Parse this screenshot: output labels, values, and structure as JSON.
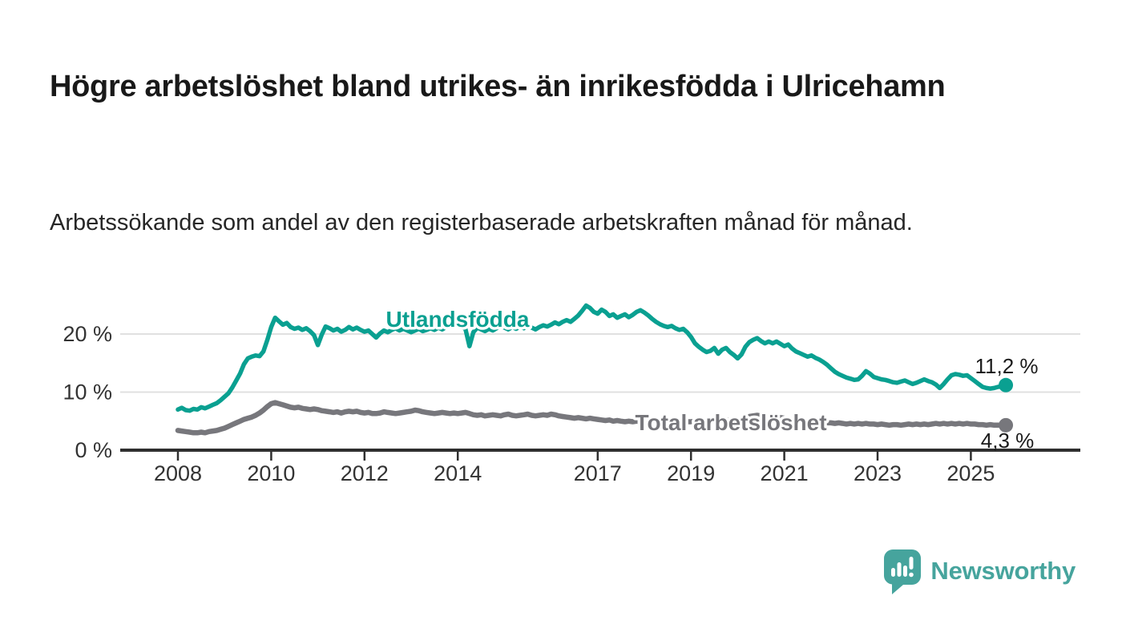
{
  "header": {
    "title": "Högre arbetslöshet bland utrikes- än inrikesfödda i Ulricehamn",
    "subtitle": "Arbetssökande som andel av den registerbaserade arbetskraften månad för månad."
  },
  "chart_data": {
    "type": "line",
    "title": "Högre arbetslöshet bland utrikes- än inrikesfödda i Ulricehamn",
    "unit": "%",
    "x_start_year": 2008,
    "x_interval": "monthly",
    "x_end_label_values": [
      "11,2 %",
      "4,3 %"
    ],
    "x_ticks": [
      2008,
      2010,
      2012,
      2014,
      2017,
      2019,
      2021,
      2023,
      2025
    ],
    "y_ticks": [
      {
        "value": 0,
        "label": "0 %"
      },
      {
        "value": 10,
        "label": "10 %"
      },
      {
        "value": 20,
        "label": "20 %"
      }
    ],
    "ylim": [
      0,
      26
    ],
    "grid": "horizontal",
    "legend_position": "inline-labels",
    "series": [
      {
        "name": "Utlandsfödda",
        "color": "#0aa091",
        "end_label": "11,2 %",
        "values": [
          7.0,
          7.3,
          6.9,
          6.8,
          7.1,
          7.0,
          7.4,
          7.2,
          7.5,
          7.8,
          8.1,
          8.6,
          9.2,
          9.8,
          10.8,
          12.0,
          13.2,
          14.8,
          15.8,
          16.1,
          16.3,
          16.2,
          17.0,
          19.0,
          21.2,
          22.8,
          22.2,
          21.6,
          21.9,
          21.2,
          20.9,
          21.1,
          20.7,
          21.0,
          20.5,
          19.8,
          18.1,
          19.9,
          21.3,
          21.0,
          20.6,
          20.9,
          20.4,
          20.7,
          21.2,
          20.8,
          21.1,
          20.7,
          20.4,
          20.6,
          20.0,
          19.4,
          20.1,
          20.6,
          20.3,
          20.7,
          21.0,
          20.6,
          20.9,
          20.6,
          20.3,
          20.6,
          20.9,
          20.5,
          20.7,
          21.0,
          20.7,
          21.1,
          20.8,
          21.2,
          21.5,
          21.8,
          21.9,
          21.4,
          20.8,
          17.9,
          20.3,
          21.1,
          20.8,
          20.5,
          20.9,
          20.6,
          21.0,
          21.3,
          21.1,
          20.8,
          21.2,
          20.9,
          21.3,
          21.0,
          21.4,
          21.1,
          20.8,
          21.2,
          21.5,
          21.3,
          21.6,
          22.0,
          21.7,
          22.1,
          22.4,
          22.1,
          22.6,
          23.2,
          24.0,
          24.9,
          24.5,
          23.8,
          23.5,
          24.2,
          23.8,
          23.1,
          23.4,
          22.8,
          23.1,
          23.4,
          22.9,
          23.3,
          23.8,
          24.1,
          23.7,
          23.2,
          22.6,
          22.1,
          21.7,
          21.4,
          21.2,
          21.4,
          21.0,
          20.7,
          20.9,
          20.3,
          19.5,
          18.4,
          17.8,
          17.3,
          16.9,
          17.1,
          17.6,
          16.6,
          17.3,
          17.6,
          16.9,
          16.4,
          15.8,
          16.5,
          17.8,
          18.6,
          19.0,
          19.3,
          18.8,
          18.4,
          18.7,
          18.4,
          18.7,
          18.3,
          17.9,
          18.2,
          17.5,
          17.0,
          16.7,
          16.4,
          16.1,
          16.3,
          15.9,
          15.6,
          15.2,
          14.7,
          14.1,
          13.5,
          13.1,
          12.8,
          12.5,
          12.3,
          12.1,
          12.2,
          12.8,
          13.6,
          13.2,
          12.6,
          12.4,
          12.2,
          12.1,
          11.9,
          11.7,
          11.6,
          11.8,
          12.0,
          11.7,
          11.4,
          11.6,
          11.9,
          12.2,
          11.9,
          11.7,
          11.3,
          10.7,
          11.4,
          12.2,
          12.9,
          13.1,
          13.0,
          12.8,
          12.9,
          12.4,
          11.9,
          11.4,
          10.9,
          10.7,
          10.6,
          10.7,
          10.9,
          11.0,
          11.2
        ]
      },
      {
        "name": "Total arbetslöshet",
        "color": "#77777c",
        "end_label": "4,3 %",
        "values": [
          3.4,
          3.3,
          3.2,
          3.1,
          3.0,
          3.0,
          3.1,
          3.0,
          3.2,
          3.3,
          3.4,
          3.6,
          3.8,
          4.1,
          4.4,
          4.7,
          5.0,
          5.3,
          5.5,
          5.7,
          6.0,
          6.4,
          6.9,
          7.5,
          8.0,
          8.2,
          8.0,
          7.8,
          7.6,
          7.4,
          7.3,
          7.4,
          7.2,
          7.1,
          7.0,
          7.1,
          7.0,
          6.8,
          6.7,
          6.6,
          6.5,
          6.6,
          6.4,
          6.6,
          6.7,
          6.6,
          6.7,
          6.5,
          6.4,
          6.5,
          6.3,
          6.3,
          6.4,
          6.6,
          6.5,
          6.4,
          6.3,
          6.4,
          6.5,
          6.6,
          6.7,
          6.9,
          6.8,
          6.6,
          6.5,
          6.4,
          6.3,
          6.4,
          6.5,
          6.4,
          6.3,
          6.4,
          6.3,
          6.4,
          6.5,
          6.3,
          6.1,
          6.0,
          6.1,
          5.9,
          6.0,
          6.1,
          6.0,
          5.9,
          6.1,
          6.2,
          6.0,
          5.9,
          6.0,
          6.1,
          6.2,
          6.0,
          5.9,
          6.0,
          6.1,
          6.0,
          6.2,
          6.1,
          5.9,
          5.8,
          5.7,
          5.6,
          5.5,
          5.6,
          5.5,
          5.4,
          5.5,
          5.4,
          5.3,
          5.2,
          5.1,
          5.2,
          5.0,
          5.1,
          5.0,
          4.9,
          5.0,
          4.9,
          5.0,
          4.9,
          4.8,
          4.9,
          4.8,
          4.7,
          4.8,
          4.9,
          4.8,
          4.7,
          4.8,
          4.9,
          4.8,
          4.9,
          4.9,
          5.0,
          4.9,
          5.0,
          5.1,
          5.0,
          5.1,
          5.0,
          5.1,
          5.2,
          5.1,
          5.2,
          5.2,
          5.3,
          5.6,
          5.8,
          5.9,
          6.0,
          5.9,
          5.8,
          5.9,
          5.8,
          5.7,
          5.6,
          5.5,
          5.4,
          5.3,
          5.2,
          5.1,
          5.0,
          4.9,
          5.0,
          4.9,
          4.8,
          4.8,
          4.7,
          4.7,
          4.6,
          4.7,
          4.6,
          4.5,
          4.6,
          4.5,
          4.6,
          4.5,
          4.6,
          4.5,
          4.5,
          4.4,
          4.5,
          4.4,
          4.3,
          4.4,
          4.4,
          4.3,
          4.4,
          4.5,
          4.4,
          4.5,
          4.4,
          4.5,
          4.4,
          4.5,
          4.6,
          4.5,
          4.6,
          4.5,
          4.6,
          4.5,
          4.6,
          4.5,
          4.6,
          4.5,
          4.5,
          4.4,
          4.4,
          4.3,
          4.4,
          4.3,
          4.3,
          4.3,
          4.3
        ]
      }
    ]
  },
  "branding": {
    "name": "Newsworthy",
    "color": "#46a49d"
  }
}
